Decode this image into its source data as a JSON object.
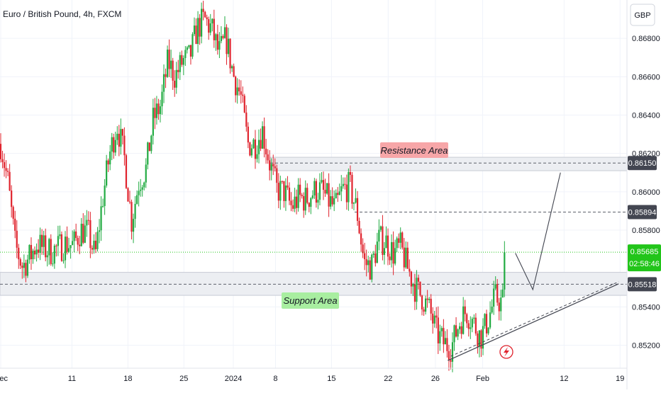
{
  "title": "Euro / British Pound, 4h, FXCM",
  "currency": "GBP",
  "colors": {
    "up": "#22ab42",
    "down": "#e0242e",
    "grid": "#f0f3fa",
    "axis_text": "#131722",
    "resistance_label_bg": "#f7a6a8",
    "support_label_bg": "#a8eea0",
    "zone_fill": "#eceef2",
    "current_price_bg": "#22c51a"
  },
  "chart_data": {
    "type": "candlestick",
    "ylim": [
      0.8508,
      0.87
    ],
    "y_ticks": [
      "0.86800",
      "0.86600",
      "0.86400",
      "0.86200",
      "0.86000",
      "0.85800",
      "0.85400",
      "0.85200"
    ],
    "x_ticks": [
      {
        "label": "Dec",
        "pos": 0
      },
      {
        "label": "11",
        "pos": 9.8
      },
      {
        "label": "18",
        "pos": 17.5
      },
      {
        "label": "25",
        "pos": 25.2
      },
      {
        "label": "2024",
        "pos": 32
      },
      {
        "label": "8",
        "pos": 37.8
      },
      {
        "label": "15",
        "pos": 45.5
      },
      {
        "label": "22",
        "pos": 53.3
      },
      {
        "label": "26",
        "pos": 59.8
      },
      {
        "label": "Feb",
        "pos": 66.3
      },
      {
        "label": "12",
        "pos": 77.5
      },
      {
        "label": "19",
        "pos": 85.2
      }
    ],
    "path_closes": [
      0.8625,
      0.8605,
      0.8572,
      0.8561,
      0.8566,
      0.8573,
      0.857,
      0.8569,
      0.8571,
      0.8573,
      0.8572,
      0.858,
      0.8579,
      0.8566,
      0.8596,
      0.862,
      0.8635,
      0.8618,
      0.8585,
      0.8605,
      0.8612,
      0.8638,
      0.8645,
      0.8668,
      0.866,
      0.8668,
      0.867,
      0.8685,
      0.869,
      0.8685,
      0.8672,
      0.868,
      0.8661,
      0.865,
      0.8625,
      0.8625,
      0.8632,
      0.8615,
      0.8601,
      0.86,
      0.8592,
      0.8597,
      0.8596,
      0.86,
      0.8601,
      0.8596,
      0.8591,
      0.8601,
      0.8603,
      0.859,
      0.8563,
      0.8561,
      0.8575,
      0.8574,
      0.8568,
      0.8571,
      0.856,
      0.855,
      0.8545,
      0.8538,
      0.8526,
      0.8521,
      0.8519,
      0.8531,
      0.8538,
      0.8532,
      0.8524,
      0.8533,
      0.8545,
      0.8542,
      0.8568
    ],
    "last_price": "0.85685",
    "countdown": "02:58:46",
    "resistance_zone": [
      0.8611,
      0.8618
    ],
    "support_zone": [
      0.8546,
      0.8558
    ],
    "levels": [
      {
        "value": 0.8615,
        "label": "0.86150"
      },
      {
        "value": 0.85894,
        "label": "0.85894"
      },
      {
        "value": 0.85518,
        "label": "0.85518"
      }
    ],
    "annotations": {
      "resistance": "Resistance Area",
      "support": "Support Area"
    },
    "trendline": {
      "from": [
        61.5,
        0.8512
      ],
      "to": [
        85,
        0.8552
      ]
    },
    "projection": [
      [
        70.8,
        0.8568
      ],
      [
        73.2,
        0.8549
      ],
      [
        77,
        0.861
      ]
    ]
  }
}
